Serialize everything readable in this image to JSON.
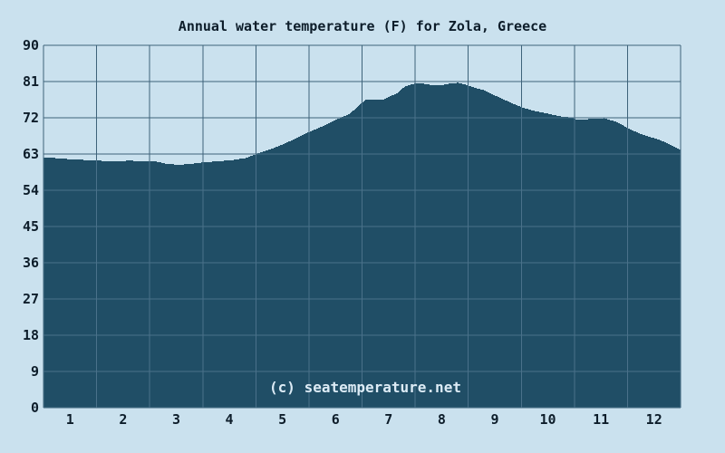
{
  "chart_data": {
    "type": "area",
    "title": "Annual water temperature (F) for Zola, Greece",
    "watermark": "(c) seatemperature.net",
    "grid": true,
    "legend": false,
    "x_axis": {
      "label": "",
      "tick_labels": [
        "1",
        "2",
        "3",
        "4",
        "5",
        "6",
        "7",
        "8",
        "9",
        "10",
        "11",
        "12"
      ],
      "range_months": [
        0,
        12
      ]
    },
    "y_axis": {
      "label": "",
      "tick_labels": [
        "90",
        "81",
        "72",
        "63",
        "54",
        "45",
        "36",
        "27",
        "18",
        "9",
        "0"
      ],
      "range_f": [
        0,
        90
      ],
      "tick_step_f": 9
    },
    "categories": [
      "1",
      "2",
      "3",
      "4",
      "5",
      "6",
      "7",
      "8",
      "9",
      "10",
      "11",
      "12"
    ],
    "monthly_values_f": [
      61.7,
      61.2,
      60.4,
      61.5,
      65.4,
      71.5,
      77.2,
      80.2,
      77.5,
      73.0,
      71.9,
      66.5
    ],
    "profile_points": [
      [
        0.0,
        62.2
      ],
      [
        0.2,
        62.0
      ],
      [
        0.5,
        61.7
      ],
      [
        0.8,
        61.5
      ],
      [
        1.1,
        61.3
      ],
      [
        1.4,
        61.1
      ],
      [
        1.6,
        61.4
      ],
      [
        1.9,
        61.1
      ],
      [
        2.05,
        61.3
      ],
      [
        2.3,
        60.6
      ],
      [
        2.55,
        60.3
      ],
      [
        2.8,
        60.6
      ],
      [
        3.05,
        61.0
      ],
      [
        3.3,
        61.2
      ],
      [
        3.55,
        61.5
      ],
      [
        3.8,
        62.0
      ],
      [
        4.0,
        63.0
      ],
      [
        4.25,
        64.1
      ],
      [
        4.5,
        65.4
      ],
      [
        4.75,
        66.9
      ],
      [
        5.0,
        68.5
      ],
      [
        5.25,
        69.9
      ],
      [
        5.5,
        71.5
      ],
      [
        5.75,
        72.9
      ],
      [
        5.95,
        75.2
      ],
      [
        6.05,
        76.4
      ],
      [
        6.4,
        76.5
      ],
      [
        6.5,
        77.2
      ],
      [
        6.65,
        78.1
      ],
      [
        6.8,
        79.8
      ],
      [
        6.95,
        80.4
      ],
      [
        7.1,
        80.6
      ],
      [
        7.3,
        80.1
      ],
      [
        7.45,
        80.0
      ],
      [
        7.6,
        80.4
      ],
      [
        7.8,
        80.7
      ],
      [
        7.95,
        80.2
      ],
      [
        8.1,
        79.5
      ],
      [
        8.3,
        78.8
      ],
      [
        8.5,
        77.5
      ],
      [
        8.75,
        76.0
      ],
      [
        9.0,
        74.6
      ],
      [
        9.2,
        73.8
      ],
      [
        9.5,
        73.0
      ],
      [
        9.75,
        72.3
      ],
      [
        9.95,
        72.0
      ],
      [
        10.05,
        71.5
      ],
      [
        10.3,
        71.7
      ],
      [
        10.55,
        71.9
      ],
      [
        10.8,
        70.9
      ],
      [
        11.0,
        69.4
      ],
      [
        11.2,
        68.2
      ],
      [
        11.4,
        67.3
      ],
      [
        11.6,
        66.5
      ],
      [
        11.8,
        65.3
      ],
      [
        12.0,
        64.0
      ]
    ],
    "colors": {
      "background": "#cae1ee",
      "area_fill": "#204e66",
      "grid_on_background": "#3e637a",
      "grid_on_area": "#4a718a",
      "text": "#0d1d2a",
      "watermark_text": "#dcebf5"
    }
  }
}
